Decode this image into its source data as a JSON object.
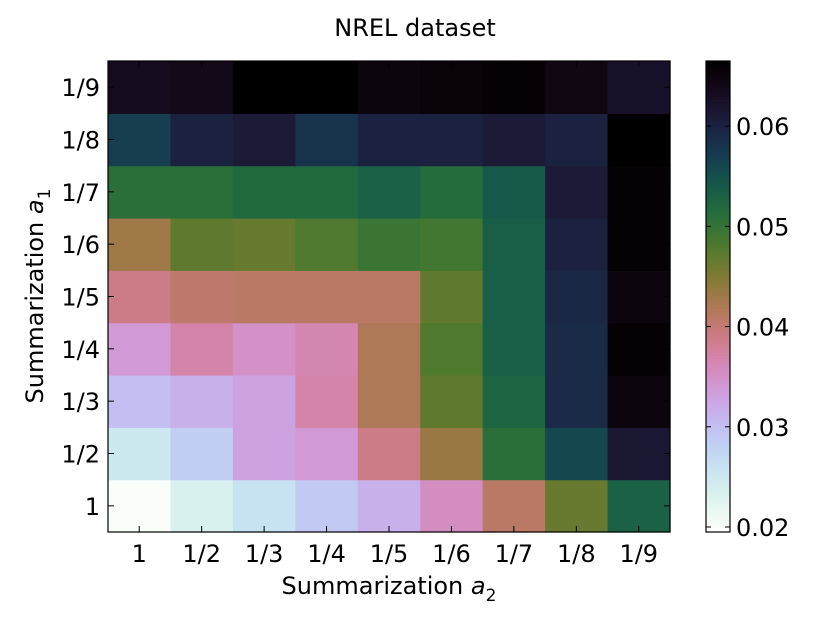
{
  "chart_data": {
    "type": "heatmap",
    "title": "NREL dataset",
    "xlabel": {
      "text": "Summarization ",
      "var": "a",
      "sub": "2"
    },
    "ylabel": {
      "text": "Summarization ",
      "var": "a",
      "sub": "1"
    },
    "x_categories": [
      "1",
      "1/2",
      "1/3",
      "1/4",
      "1/5",
      "1/6",
      "1/7",
      "1/8",
      "1/9"
    ],
    "y_categories": [
      "1",
      "1/2",
      "1/3",
      "1/4",
      "1/5",
      "1/6",
      "1/7",
      "1/8",
      "1/9"
    ],
    "values": [
      [
        0.02,
        0.0235,
        0.026,
        0.029,
        0.0315,
        0.0355,
        0.041,
        0.0465,
        0.053
      ],
      [
        0.025,
        0.0285,
        0.033,
        0.034,
        0.039,
        0.0435,
        0.051,
        0.056,
        0.0615
      ],
      [
        0.03,
        0.0315,
        0.033,
        0.037,
        0.042,
        0.047,
        0.0525,
        0.059,
        0.065
      ],
      [
        0.034,
        0.037,
        0.035,
        0.0365,
        0.042,
        0.048,
        0.0535,
        0.059,
        0.066
      ],
      [
        0.039,
        0.0405,
        0.041,
        0.041,
        0.041,
        0.047,
        0.0535,
        0.0595,
        0.065
      ],
      [
        0.043,
        0.047,
        0.0465,
        0.048,
        0.0495,
        0.049,
        0.0535,
        0.06,
        0.066
      ],
      [
        0.051,
        0.051,
        0.052,
        0.052,
        0.053,
        0.0515,
        0.054,
        0.061,
        0.066
      ],
      [
        0.057,
        0.06,
        0.061,
        0.058,
        0.06,
        0.06,
        0.061,
        0.06,
        0.0665
      ],
      [
        0.0635,
        0.064,
        0.0665,
        0.067,
        0.065,
        0.0655,
        0.066,
        0.0645,
        0.0625
      ]
    ],
    "colorbar": {
      "range": [
        0.0195,
        0.0665
      ],
      "ticks": [
        {
          "value": 0.02,
          "label": "0.02"
        },
        {
          "value": 0.03,
          "label": "0.03"
        },
        {
          "value": 0.04,
          "label": "0.04"
        },
        {
          "value": 0.05,
          "label": "0.05"
        },
        {
          "value": 0.06,
          "label": "0.06"
        }
      ],
      "colormap": "cubehelix_r"
    },
    "grid": false
  }
}
